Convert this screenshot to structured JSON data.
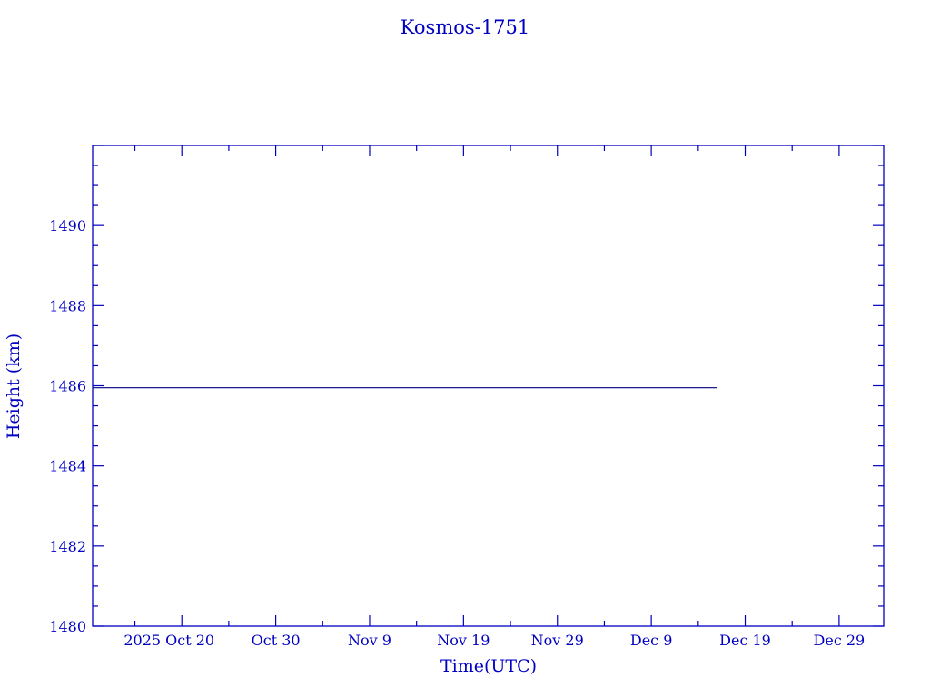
{
  "chart_data": {
    "type": "line",
    "title": "Kosmos-1751",
    "xlabel": "Time(UTC)",
    "ylabel": "Height (km)",
    "xlim": [
      "2025-10-10T12:00:00Z",
      "2026-01-02T18:00:00Z"
    ],
    "ylim": [
      1480,
      1492
    ],
    "x_ticks": [
      {
        "date": "2025-10-20",
        "label": "2025 Oct 20"
      },
      {
        "date": "2025-10-30",
        "label": "Oct 30"
      },
      {
        "date": "2025-11-09",
        "label": "Nov  9"
      },
      {
        "date": "2025-11-19",
        "label": "Nov 19"
      },
      {
        "date": "2025-11-29",
        "label": "Nov 29"
      },
      {
        "date": "2025-12-09",
        "label": "Dec  9"
      },
      {
        "date": "2025-12-19",
        "label": "Dec 19"
      },
      {
        "date": "2025-12-29",
        "label": "Dec 29"
      }
    ],
    "y_ticks": [
      1480,
      1482,
      1484,
      1486,
      1488,
      1490
    ],
    "grid": false,
    "series": [
      {
        "x": [
          "2025-10-10T12:00:00Z",
          "2025-12-16T00:00:00Z"
        ],
        "y": [
          1485.95,
          1485.95
        ]
      }
    ],
    "colors": {
      "axes": "#0000c0",
      "text": "#0000c0",
      "line": "#000080"
    }
  }
}
